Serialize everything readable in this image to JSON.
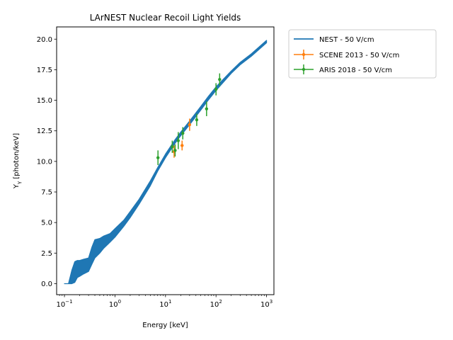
{
  "chart_data": {
    "type": "scatter",
    "title": "LArNEST Nuclear Recoil Light Yields",
    "xlabel": "Energy [keV]",
    "ylabel_main": "Y",
    "ylabel_sub": "γ",
    "ylabel_rest": " [photon/keV]",
    "x_scale": "log",
    "xlim": [
      0.07,
      1400
    ],
    "ylim": [
      -0.9,
      21.0
    ],
    "x_ticks": [
      {
        "value": 0.1,
        "base": "10",
        "exp": "−1"
      },
      {
        "value": 1,
        "base": "10",
        "exp": "0"
      },
      {
        "value": 10,
        "base": "10",
        "exp": "1"
      },
      {
        "value": 100,
        "base": "10",
        "exp": "2"
      },
      {
        "value": 1000,
        "base": "10",
        "exp": "3"
      }
    ],
    "y_ticks": [
      {
        "value": 0,
        "label": "0.0"
      },
      {
        "value": 2.5,
        "label": "2.5"
      },
      {
        "value": 5,
        "label": "5.0"
      },
      {
        "value": 7.5,
        "label": "7.5"
      },
      {
        "value": 10,
        "label": "10.0"
      },
      {
        "value": 12.5,
        "label": "12.5"
      },
      {
        "value": 15,
        "label": "15.0"
      },
      {
        "value": 17.5,
        "label": "17.5"
      },
      {
        "value": 20,
        "label": "20.0"
      }
    ],
    "grid": false,
    "legend_position": "outside-top-right",
    "series": [
      {
        "name": "NEST - 50 V/cm",
        "kind": "line-band",
        "color": "#1f77b4",
        "x": [
          0.1,
          0.12,
          0.14,
          0.16,
          0.18,
          0.2,
          0.24,
          0.3,
          0.35,
          0.4,
          0.5,
          0.6,
          0.8,
          1,
          1.5,
          2,
          3,
          5,
          7,
          10,
          15,
          20,
          30,
          50,
          70,
          100,
          200,
          300,
          500,
          1000
        ],
        "upper": [
          0.0,
          0.0,
          1.1,
          1.8,
          1.9,
          1.9,
          2.0,
          2.1,
          3.0,
          3.6,
          3.7,
          3.9,
          4.1,
          4.5,
          5.2,
          5.9,
          6.9,
          8.4,
          9.5,
          10.6,
          11.7,
          12.4,
          13.3,
          14.5,
          15.3,
          16.1,
          17.4,
          18.1,
          18.8,
          19.9
        ],
        "lower": [
          0.0,
          0.0,
          0.0,
          0.1,
          0.5,
          0.6,
          0.8,
          1.0,
          1.6,
          2.1,
          2.5,
          2.9,
          3.4,
          3.8,
          4.7,
          5.4,
          6.5,
          8.0,
          9.2,
          10.3,
          11.4,
          12.1,
          13.0,
          14.2,
          15.0,
          15.8,
          17.2,
          17.9,
          18.6,
          19.7
        ]
      },
      {
        "name": "SCENE 2013 - 50 V/cm",
        "kind": "errorbar",
        "color": "#ff7f0e",
        "points": [
          {
            "x": 14.8,
            "y": 10.8,
            "yerr": 0.5,
            "xerr": 1.2
          },
          {
            "x": 21.3,
            "y": 11.3,
            "yerr": 0.4,
            "xerr": 1.5
          },
          {
            "x": 30.0,
            "y": 13.0,
            "yerr": 0.5,
            "xerr": 1.8
          }
        ]
      },
      {
        "name": "ARIS 2018 - 50 V/cm",
        "kind": "errorbar",
        "color": "#2ca02c",
        "points": [
          {
            "x": 7.1,
            "y": 10.3,
            "yerr": 0.6,
            "xerr": 0.3
          },
          {
            "x": 13.6,
            "y": 11.2,
            "yerr": 0.5,
            "xerr": 0.5
          },
          {
            "x": 15.5,
            "y": 10.9,
            "yerr": 0.5,
            "xerr": 0.6
          },
          {
            "x": 17.9,
            "y": 11.7,
            "yerr": 0.7,
            "xerr": 0.7
          },
          {
            "x": 22.0,
            "y": 12.3,
            "yerr": 0.5,
            "xerr": 0.9
          },
          {
            "x": 41.5,
            "y": 13.4,
            "yerr": 0.5,
            "xerr": 1.5
          },
          {
            "x": 65.0,
            "y": 14.3,
            "yerr": 0.6,
            "xerr": 2.2
          },
          {
            "x": 100.0,
            "y": 15.9,
            "yerr": 0.5,
            "xerr": 3.0
          },
          {
            "x": 118.0,
            "y": 16.7,
            "yerr": 0.5,
            "xerr": 3.5
          }
        ]
      }
    ]
  }
}
